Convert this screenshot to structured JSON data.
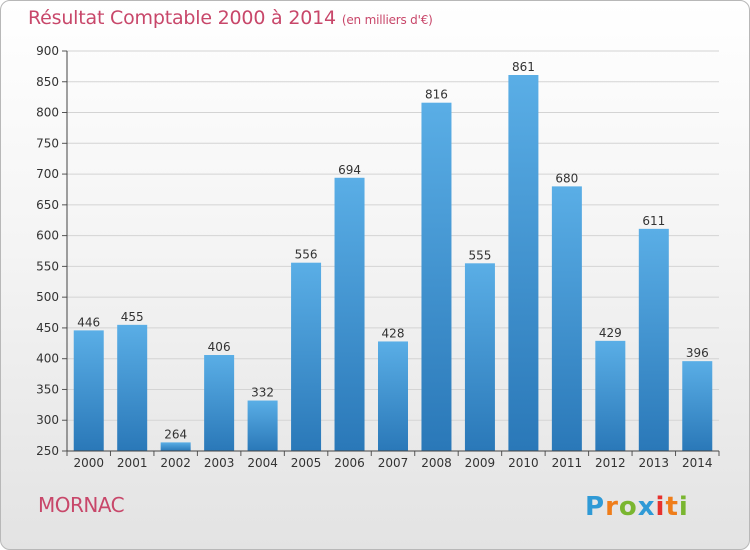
{
  "title": "Résultat Comptable 2000 à 2014",
  "title_unit": "(en milliers d'€)",
  "town": "MORNAC",
  "logo_text": "Proxiti",
  "colors": {
    "title": "#c8476a",
    "bar_light": "#5aaee6",
    "bar_dark": "#2a78b8",
    "grid": "#d4d4d4"
  },
  "chart_data": {
    "type": "bar",
    "title": "Résultat Comptable 2000 à 2014",
    "ylabel": "en milliers d'€",
    "xlabel": "",
    "categories": [
      "2000",
      "2001",
      "2002",
      "2003",
      "2004",
      "2005",
      "2006",
      "2007",
      "2008",
      "2009",
      "2010",
      "2011",
      "2012",
      "2013",
      "2014"
    ],
    "values": [
      446,
      455,
      264,
      406,
      332,
      556,
      694,
      428,
      816,
      555,
      861,
      680,
      429,
      611,
      396
    ],
    "ylim": [
      250,
      900
    ],
    "yticks": [
      250,
      300,
      350,
      400,
      450,
      500,
      550,
      600,
      650,
      700,
      750,
      800,
      850,
      900
    ],
    "grid": true
  }
}
